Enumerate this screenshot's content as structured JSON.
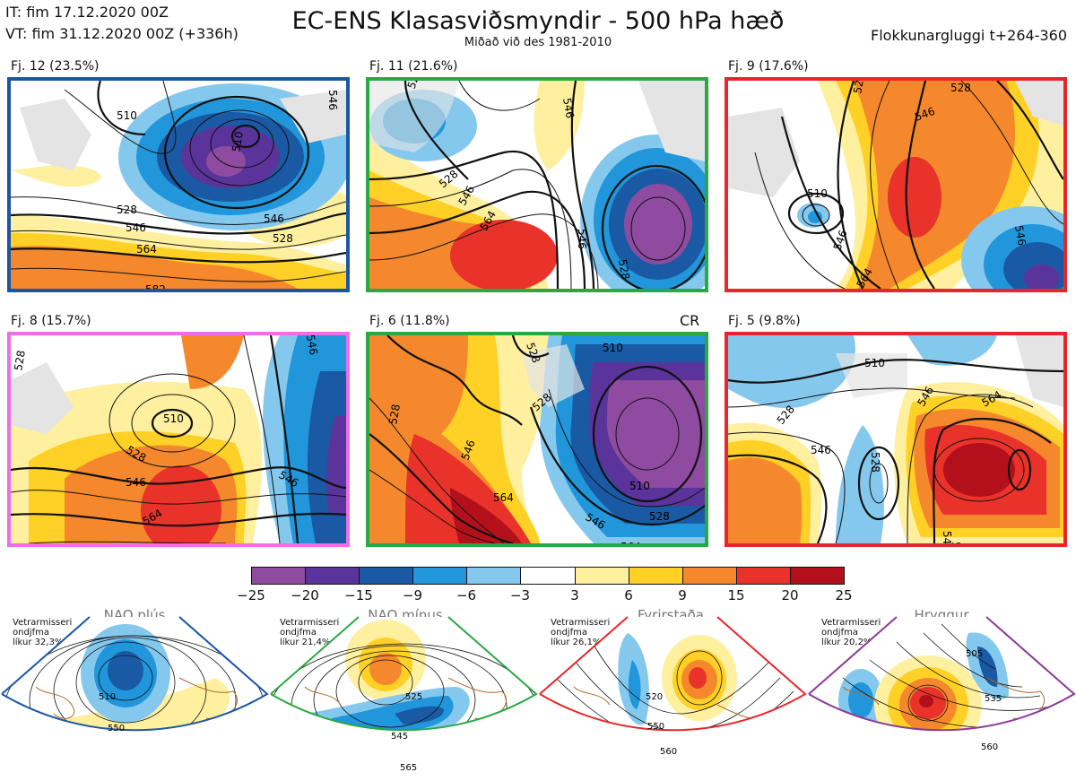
{
  "header": {
    "initial_time": "IT: fim 17.12.2020 00Z",
    "valid_time": "VT: fim 31.12.2020 00Z  (+336h)",
    "title": "EC-ENS Klasasviðsmyndir - 500 hPa hæð",
    "subtitle": "Miðað við des 1981-2010",
    "window": "Flokkunargluggi t+264-360"
  },
  "colors": {
    "klasi_blue": "#1a56a6",
    "klasi_green": "#2aa844",
    "klasi_red": "#e8252a",
    "klasi_pink": "#ee6ee8",
    "hryggur_purple": "#8b3a98"
  },
  "panels": [
    {
      "label": "Fj. 12 (23.5%)",
      "border": "#1a56a6",
      "contours": [
        "510",
        "528",
        "546",
        "564",
        "582",
        "546",
        "528",
        "510",
        "546"
      ]
    },
    {
      "label": "Fj. 11 (21.6%)",
      "border": "#2aa844",
      "contours": [
        "546",
        "528",
        "546",
        "564",
        "546",
        "528",
        "528"
      ]
    },
    {
      "label": "Fj. 9 (17.6%)",
      "border": "#e8252a",
      "contours": [
        "528",
        "546",
        "510",
        "546",
        "564",
        "546",
        "528"
      ]
    },
    {
      "label": "Fj. 8 (15.7%)",
      "border": "#ee6ee8",
      "contours": [
        "528",
        "510",
        "528",
        "546",
        "564",
        "546",
        "546"
      ]
    },
    {
      "label": "Fj. 6 (11.8%)",
      "border": "#2aa844",
      "contours": [
        "528",
        "528",
        "510",
        "546",
        "564",
        "546",
        "528",
        "564",
        "510",
        "528"
      ]
    },
    {
      "label": "Fj. 5 (9.8%)",
      "border": "#e8252a",
      "contours": [
        "510",
        "528",
        "546",
        "528",
        "546",
        "564",
        "546",
        "564"
      ]
    }
  ],
  "cr_label": "CR",
  "colorbar": {
    "colors": [
      "#8e4ba0",
      "#5a349a",
      "#1a5aa5",
      "#2196da",
      "#85c8ee",
      "#ffffff",
      "#fff0a0",
      "#ffd126",
      "#f5882d",
      "#e8322a",
      "#b4101c"
    ],
    "ticks": [
      "−25",
      "−20",
      "−15",
      "−9",
      "−6",
      "−3",
      "3",
      "6",
      "9",
      "15",
      "20",
      "25"
    ]
  },
  "regimes": [
    {
      "title": "NAO plús",
      "note": [
        "Vetrarmisseri",
        "ondjfma",
        "líkur 32,3%"
      ],
      "dot_color": "#1a56a6",
      "border": "#1a56a6",
      "contours": [
        "510",
        "550"
      ]
    },
    {
      "title": "NAO mínus",
      "note": [
        "Vetrarmisseri",
        "ondjfma",
        "líkur 21,4%"
      ],
      "dot_color": "#2aa844",
      "border": "#2aa844",
      "contours": [
        "525",
        "545",
        "565"
      ]
    },
    {
      "title": "Fyrirstaða",
      "note": [
        "Vetrarmisseri",
        "ondjfma",
        "líkur 26,1%"
      ],
      "dot_color": "#e8252a",
      "border": "#e8252a",
      "contours": [
        "520",
        "550",
        "560"
      ]
    },
    {
      "title": "Hryggur",
      "note": [
        "Vetrarmisseri",
        "ondjfma",
        "líkur 20,2%"
      ],
      "dot_color": "#ee6ee8",
      "border": "#8b3a98",
      "contours": [
        "505",
        "535",
        "560"
      ]
    }
  ]
}
